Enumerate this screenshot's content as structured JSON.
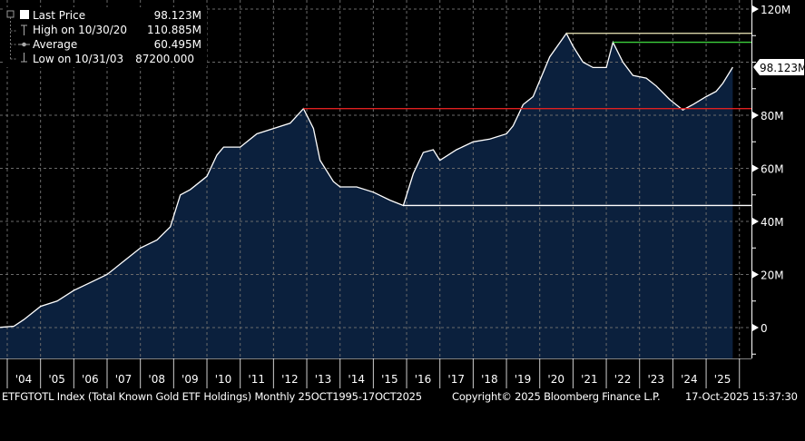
{
  "chart_data": {
    "type": "area",
    "title": "ETFGTOTL Index (Total Known Gold ETF Holdings) Monthly 25OCT1995-17OCT2025",
    "xlabel": "",
    "ylabel": "",
    "ylim": [
      -4,
      121
    ],
    "xlim": [
      2003.8,
      2026.2
    ],
    "y_ticks": [
      0,
      20,
      40,
      60,
      80,
      100,
      120
    ],
    "y_tick_labels": [
      "0",
      "20M",
      "40M",
      "60M",
      "80M",
      "100M",
      "120M"
    ],
    "x_tick_labels": [
      "'04",
      "'05",
      "'06",
      "'07",
      "'08",
      "'09",
      "'10",
      "'11",
      "'12",
      "'13",
      "'14",
      "'15",
      "'16",
      "'17",
      "'18",
      "'19",
      "'20",
      "'21",
      "'22",
      "'23",
      "'24",
      "'25"
    ],
    "grid": true,
    "legend_position": "top-left",
    "series": [
      {
        "name": "Last Price",
        "x": [
          2003.8,
          2004.2,
          2004.5,
          2005.0,
          2005.5,
          2006.0,
          2006.5,
          2007.0,
          2007.5,
          2008.0,
          2008.5,
          2008.9,
          2009.2,
          2009.5,
          2010.0,
          2010.3,
          2010.5,
          2011.0,
          2011.5,
          2012.0,
          2012.5,
          2012.9,
          2013.2,
          2013.4,
          2013.8,
          2014.0,
          2014.5,
          2015.0,
          2015.5,
          2015.9,
          2016.2,
          2016.5,
          2016.8,
          2017.0,
          2017.5,
          2018.0,
          2018.5,
          2019.0,
          2019.2,
          2019.5,
          2019.8,
          2020.0,
          2020.3,
          2020.8,
          2021.0,
          2021.3,
          2021.6,
          2022.0,
          2022.2,
          2022.5,
          2022.8,
          2023.2,
          2023.5,
          2023.9,
          2024.3,
          2024.6,
          2025.0,
          2025.3,
          2025.5,
          2025.8
        ],
        "values": [
          0.09,
          0.5,
          3,
          8,
          10,
          14,
          17,
          20,
          25,
          30,
          33,
          38,
          50,
          52,
          57,
          65,
          68,
          68,
          73,
          75,
          77,
          82.5,
          75,
          63,
          55,
          53,
          53,
          51,
          48,
          46,
          58,
          66,
          67,
          63,
          67,
          70,
          71,
          73,
          76,
          84,
          87,
          93,
          102,
          110.885,
          106,
          100,
          98,
          98,
          107.5,
          100,
          95,
          94,
          91,
          86,
          82,
          84,
          87,
          89,
          92,
          98.123
        ]
      }
    ],
    "horizontal_lines": [
      {
        "value": 110.885,
        "from": 2020.8,
        "color": "#d8d3a8"
      },
      {
        "value": 107.5,
        "from": 2022.2,
        "color": "#3ccf3c"
      },
      {
        "value": 82.5,
        "from": 2012.9,
        "color": "#e02020"
      },
      {
        "value": 46,
        "from": 2015.9,
        "color": "#ffffff"
      }
    ],
    "last_value_label": "98.123M",
    "last_value": 98.123
  },
  "legend": {
    "items": [
      {
        "label": "Last Price",
        "value": "98.123M",
        "icon": "filled-square-icon"
      },
      {
        "label": "High on 10/30/20",
        "value": "110.885M",
        "icon": "high-marker-icon"
      },
      {
        "label": "Average",
        "value": "60.495M",
        "icon": "average-marker-icon"
      },
      {
        "label": "Low on 10/31/03",
        "value": "87200.000",
        "icon": "low-marker-icon"
      }
    ]
  },
  "footer": {
    "description": "ETFGTOTL Index (Total Known Gold ETF Holdings) Monthly 25OCT1995-17OCT2025",
    "copyright": "Copyright© 2025 Bloomberg Finance L.P.",
    "timestamp": "17-Oct-2025 15:37:30"
  },
  "colors": {
    "fill": "#0b203d",
    "line": "#ffffff",
    "grid": "#6a6a6a",
    "background": "#000000"
  }
}
